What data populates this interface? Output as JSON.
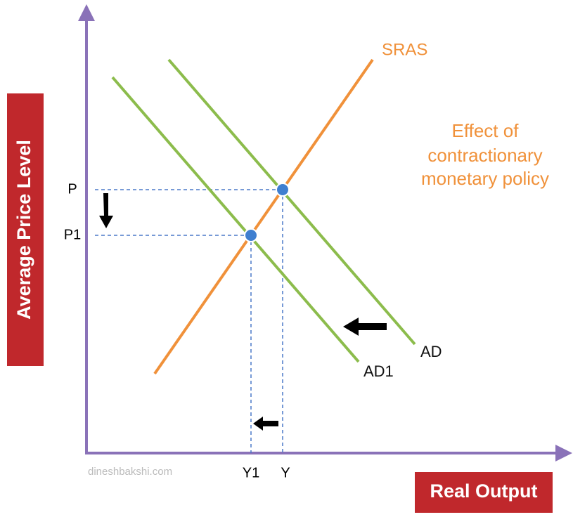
{
  "axes": {
    "y_label": "Average Price Level",
    "x_label": "Real Output"
  },
  "curves": [
    {
      "label": "SRAS"
    },
    {
      "label": "AD"
    },
    {
      "label": "AD1"
    }
  ],
  "annotation": [
    "Effect of",
    "contractionary",
    "monetary policy"
  ],
  "price_levels": [
    "P",
    "P1"
  ],
  "outputs": [
    "Y1",
    "Y"
  ],
  "watermark": "dineshbakshi.com"
}
